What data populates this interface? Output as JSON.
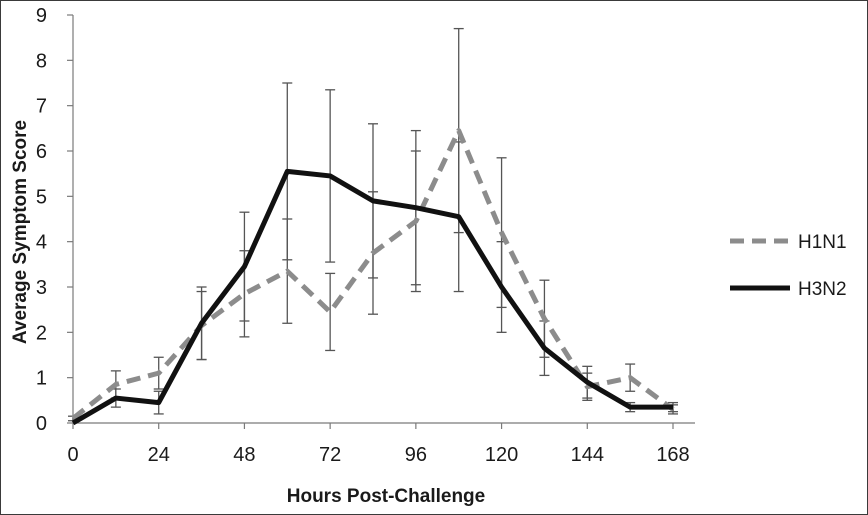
{
  "chart_data": {
    "type": "line",
    "title": "",
    "xlabel": "Hours Post-Challenge",
    "ylabel": "Average Symptom Score",
    "x": [
      0,
      12,
      24,
      36,
      48,
      60,
      72,
      84,
      96,
      108,
      120,
      132,
      144,
      156,
      168
    ],
    "xticks": [
      0,
      24,
      48,
      72,
      96,
      120,
      144,
      168
    ],
    "xlim": [
      0,
      168
    ],
    "ylim": [
      0,
      9
    ],
    "yticks": [
      0,
      1,
      2,
      3,
      4,
      5,
      6,
      7,
      8,
      9
    ],
    "grid": false,
    "legend_position": "right",
    "series": [
      {
        "name": "H1N1",
        "style": "dashed",
        "color": "#8c8c8c",
        "values": [
          0.1,
          0.85,
          1.1,
          2.15,
          2.85,
          3.35,
          2.45,
          3.75,
          4.45,
          6.45,
          4.2,
          2.3,
          0.8,
          1.0,
          0.3
        ],
        "error": [
          0.05,
          0.3,
          0.35,
          0.75,
          0.95,
          1.15,
          0.85,
          1.35,
          1.55,
          2.25,
          1.65,
          0.85,
          0.3,
          0.3,
          0.1
        ]
      },
      {
        "name": "H3N2",
        "style": "solid",
        "color": "#111111",
        "values": [
          0.0,
          0.55,
          0.45,
          2.2,
          3.45,
          5.55,
          5.45,
          4.9,
          4.75,
          4.55,
          3.0,
          1.65,
          0.9,
          0.35,
          0.35
        ],
        "error": [
          0.0,
          0.2,
          0.25,
          0.8,
          1.2,
          1.95,
          1.9,
          1.7,
          1.7,
          1.65,
          1.0,
          0.6,
          0.35,
          0.1,
          0.1
        ]
      }
    ]
  }
}
